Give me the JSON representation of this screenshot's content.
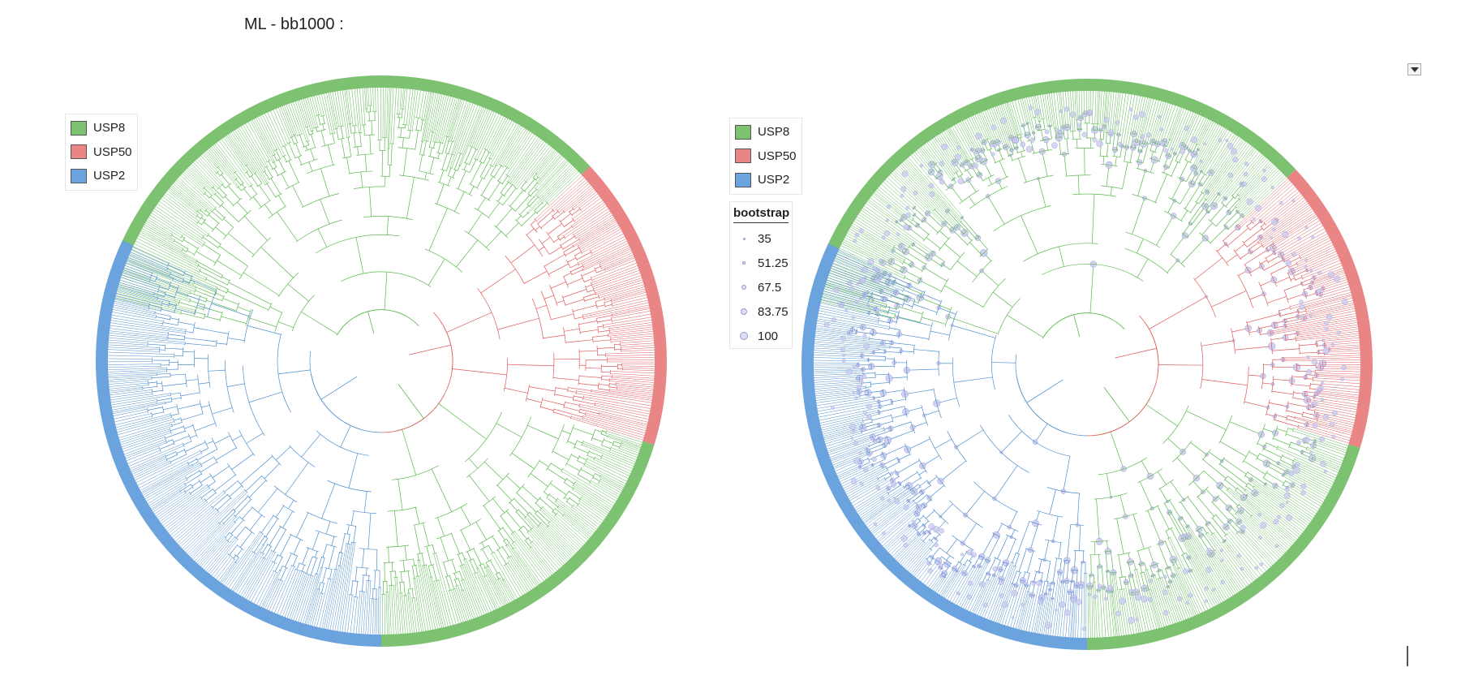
{
  "page": {
    "title": "ML - bb1000 :"
  },
  "colors": {
    "USP8": "#7cc270",
    "USP50": "#e98585",
    "USP2": "#6aa3dd",
    "branch_USP8": "#5cb84f",
    "branch_USP50": "#e05a5a",
    "branch_USP2": "#4f8fcf",
    "bootstrap_node": "#c8c8ee"
  },
  "clade_legend": {
    "items": [
      {
        "label": "USP8",
        "color": "#7cc270"
      },
      {
        "label": "USP50",
        "color": "#e98585"
      },
      {
        "label": "USP2",
        "color": "#6aa3dd"
      }
    ]
  },
  "bootstrap_legend": {
    "title": "bootstrap",
    "items": [
      {
        "label": "35",
        "value": 35
      },
      {
        "label": "51.25",
        "value": 51.25
      },
      {
        "label": "67.5",
        "value": 67.5
      },
      {
        "label": "83.75",
        "value": 83.75
      },
      {
        "label": "100",
        "value": 100
      }
    ]
  },
  "trees": [
    {
      "name": "tree-without-bootstrap",
      "show_bootstrap": false
    },
    {
      "name": "tree-with-bootstrap",
      "show_bootstrap": true
    }
  ],
  "icons": {
    "menu": "dropdown-menu-icon",
    "cursor": "text-cursor-icon"
  }
}
